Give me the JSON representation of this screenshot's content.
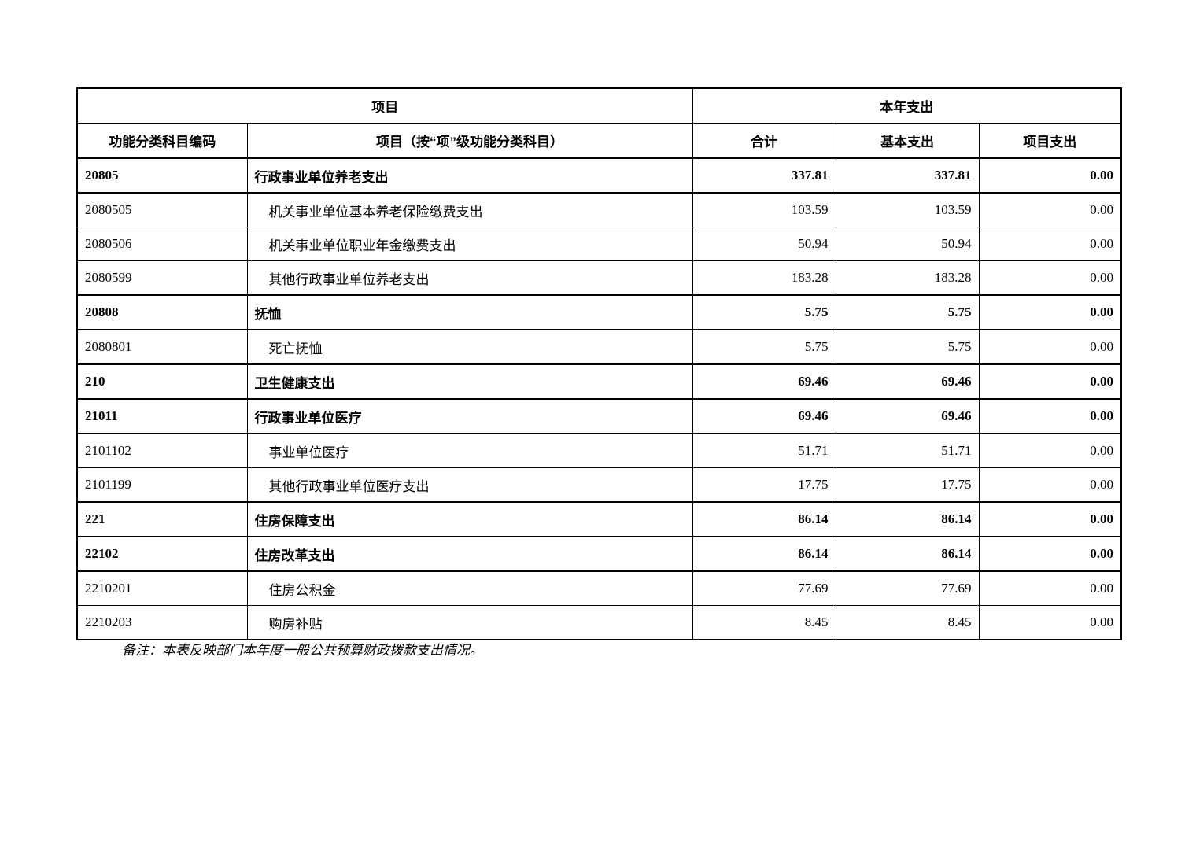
{
  "table": {
    "header": {
      "group_project": "项目",
      "group_current_year": "本年支出",
      "col_code": "功能分类科目编码",
      "col_item": "项目（按“项”级功能分类科目）",
      "col_total": "合计",
      "col_basic": "基本支出",
      "col_project": "项目支出"
    },
    "rows": [
      {
        "code": "20805",
        "name": "行政事业单位养老支出",
        "total": "337.81",
        "basic": "337.81",
        "project": "0.00",
        "bold": true
      },
      {
        "code": "2080505",
        "name": "机关事业单位基本养老保险缴费支出",
        "total": "103.59",
        "basic": "103.59",
        "project": "0.00",
        "bold": false
      },
      {
        "code": "2080506",
        "name": "机关事业单位职业年金缴费支出",
        "total": "50.94",
        "basic": "50.94",
        "project": "0.00",
        "bold": false
      },
      {
        "code": "2080599",
        "name": "其他行政事业单位养老支出",
        "total": "183.28",
        "basic": "183.28",
        "project": "0.00",
        "bold": false
      },
      {
        "code": "20808",
        "name": "抚恤",
        "total": "5.75",
        "basic": "5.75",
        "project": "0.00",
        "bold": true
      },
      {
        "code": "2080801",
        "name": "死亡抚恤",
        "total": "5.75",
        "basic": "5.75",
        "project": "0.00",
        "bold": false
      },
      {
        "code": "210",
        "name": "卫生健康支出",
        "total": "69.46",
        "basic": "69.46",
        "project": "0.00",
        "bold": true
      },
      {
        "code": "21011",
        "name": "行政事业单位医疗",
        "total": "69.46",
        "basic": "69.46",
        "project": "0.00",
        "bold": true
      },
      {
        "code": "2101102",
        "name": "事业单位医疗",
        "total": "51.71",
        "basic": "51.71",
        "project": "0.00",
        "bold": false
      },
      {
        "code": "2101199",
        "name": "其他行政事业单位医疗支出",
        "total": "17.75",
        "basic": "17.75",
        "project": "0.00",
        "bold": false
      },
      {
        "code": "221",
        "name": "住房保障支出",
        "total": "86.14",
        "basic": "86.14",
        "project": "0.00",
        "bold": true
      },
      {
        "code": "22102",
        "name": "住房改革支出",
        "total": "86.14",
        "basic": "86.14",
        "project": "0.00",
        "bold": true
      },
      {
        "code": "2210201",
        "name": "住房公积金",
        "total": "77.69",
        "basic": "77.69",
        "project": "0.00",
        "bold": false
      },
      {
        "code": "2210203",
        "name": "购房补贴",
        "total": "8.45",
        "basic": "8.45",
        "project": "0.00",
        "bold": false
      }
    ]
  },
  "note": "备注：本表反映部门本年度一般公共预算财政拨款支出情况。"
}
